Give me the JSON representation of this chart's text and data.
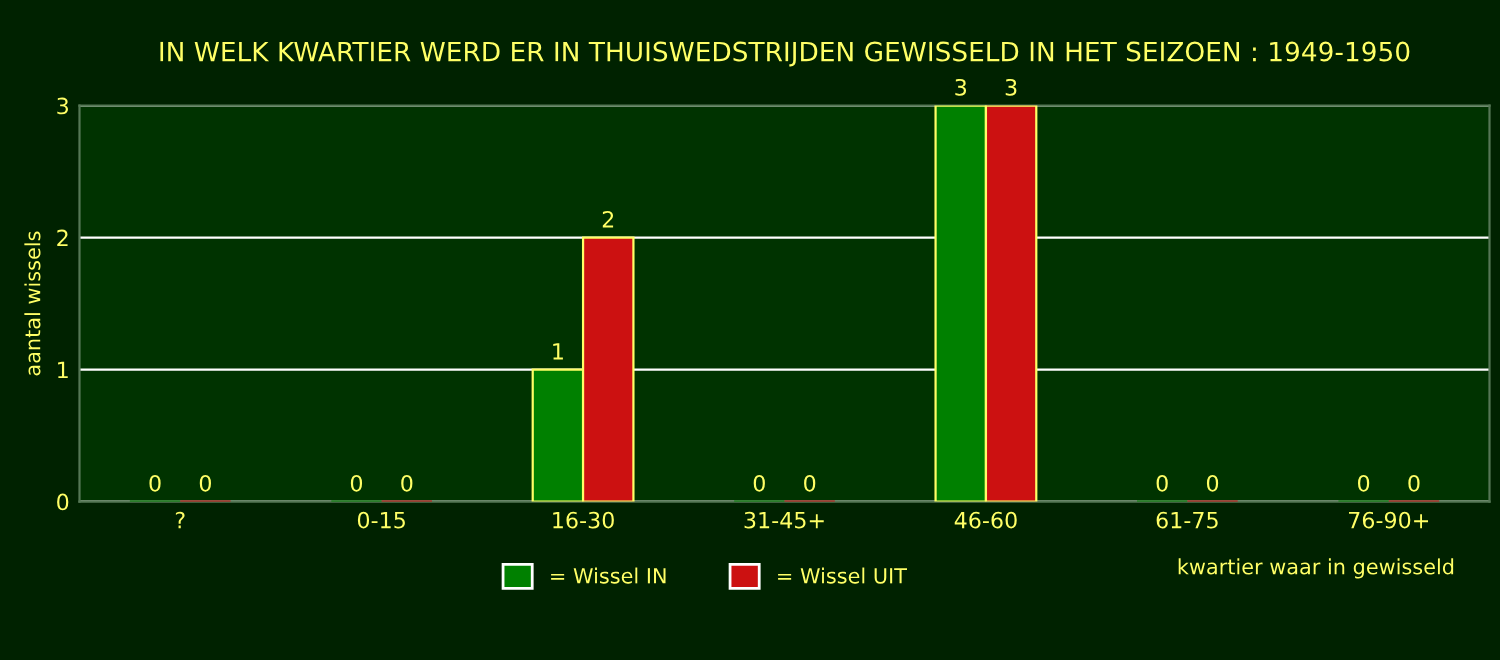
{
  "chart_data": {
    "type": "bar",
    "title": "IN WELK KWARTIER WERD ER IN THUISWEDSTRIJDEN GEWISSELD IN HET SEIZOEN : 1949-1950",
    "xlabel": "kwartier waar in gewisseld",
    "ylabel": "aantal wissels",
    "categories": [
      "?",
      "0-15",
      "16-30",
      "31-45+",
      "46-60",
      "61-75",
      "76-90+"
    ],
    "series": [
      {
        "name": "= Wissel IN",
        "color": "#008000",
        "values": [
          0,
          0,
          1,
          0,
          3,
          0,
          0
        ]
      },
      {
        "name": "= Wissel UIT",
        "color": "#cc1111",
        "values": [
          0,
          0,
          2,
          0,
          3,
          0,
          0
        ]
      }
    ],
    "ylim": [
      0,
      3
    ],
    "yticks": [
      0,
      1,
      2,
      3
    ],
    "grid": "y",
    "legend": "bottom",
    "data_labels": true
  }
}
